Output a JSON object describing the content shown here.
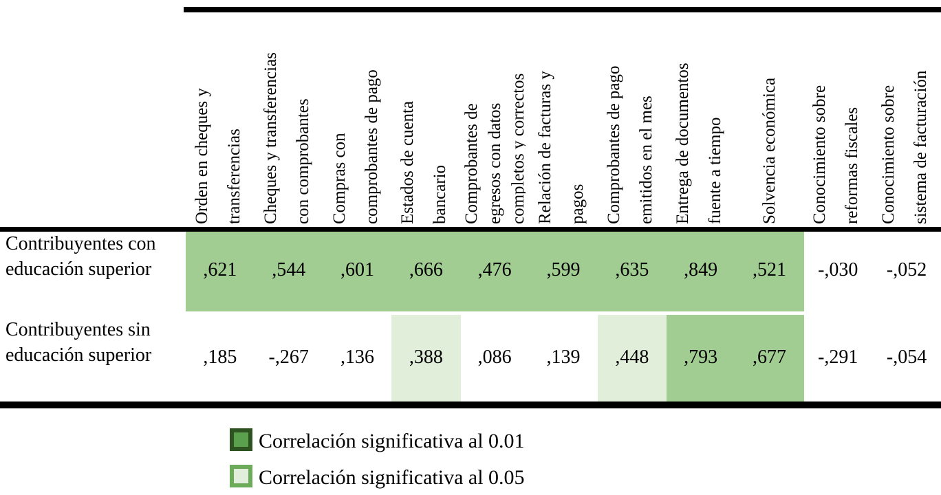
{
  "table": {
    "columns": [
      {
        "lines": [
          "Orden en cheques y",
          "transferencias"
        ]
      },
      {
        "lines": [
          "Cheques y transferencias",
          "con comprobantes"
        ]
      },
      {
        "lines": [
          "Compras con",
          "comprobantes de pago"
        ]
      },
      {
        "lines": [
          "Estados de cuenta",
          "bancario"
        ]
      },
      {
        "lines": [
          "Comprobantes de",
          "egresos con datos",
          "completos y correctos"
        ]
      },
      {
        "lines": [
          "Relación de facturas y",
          "pagos"
        ]
      },
      {
        "lines": [
          "Comprobantes de pago",
          "emitidos en el mes"
        ]
      },
      {
        "lines": [
          "Entrega de documentos",
          "fuente a tiempo"
        ]
      },
      {
        "lines": [
          "Solvencia económica"
        ]
      },
      {
        "lines": [
          "Conocimiento sobre",
          "reformas fiscales"
        ]
      },
      {
        "lines": [
          "Conocimiento sobre",
          "sistema de facturación"
        ]
      }
    ],
    "rows": [
      {
        "label_lines": [
          "Contribuyentes con",
          "educación superior"
        ],
        "values": [
          ",621",
          ",544",
          ",601",
          ",666",
          ",476",
          ",599",
          ",635",
          ",849",
          ",521",
          "-,030",
          "-,052"
        ],
        "significance": [
          "0.01",
          "0.01",
          "0.01",
          "0.01",
          "0.01",
          "0.01",
          "0.01",
          "0.01",
          "0.01",
          null,
          null
        ]
      },
      {
        "label_lines": [
          "Contribuyentes sin",
          "educación superior"
        ],
        "values": [
          ",185",
          "-,267",
          ",136",
          ",388",
          ",086",
          ",139",
          ",448",
          ",793",
          ",677",
          "-,291",
          "-,054"
        ],
        "significance": [
          null,
          null,
          null,
          "0.05",
          null,
          null,
          "0.05",
          "0.01",
          "0.01",
          null,
          null
        ]
      }
    ]
  },
  "legend": {
    "items": [
      {
        "label": "Correlación significativa al 0.01",
        "swatch_fill": "#5ba04c",
        "swatch_border": "#2d5420"
      },
      {
        "label": "Correlación significativa al 0.05",
        "swatch_fill": "#e1eedb",
        "swatch_border": "#6cab59"
      }
    ]
  },
  "colors": {
    "sig_001_cell": "#a1cd92",
    "sig_005_cell": "#e0eeda",
    "rule": "#000000"
  },
  "chart_data": {
    "type": "table",
    "title": "",
    "columns": [
      "Orden en cheques y transferencias",
      "Cheques y transferencias con comprobantes",
      "Compras con comprobantes de pago",
      "Estados de cuenta bancario",
      "Comprobantes de egresos con datos completos y correctos",
      "Relación de facturas y pagos",
      "Comprobantes de pago emitidos en el mes",
      "Entrega de documentos fuente a tiempo",
      "Solvencia económica",
      "Conocimiento sobre reformas fiscales",
      "Conocimiento sobre sistema de facturación"
    ],
    "rows": [
      {
        "name": "Contribuyentes con educación superior",
        "values": [
          0.621,
          0.544,
          0.601,
          0.666,
          0.476,
          0.599,
          0.635,
          0.849,
          0.521,
          -0.03,
          -0.052
        ],
        "significant_at": [
          0.01,
          0.01,
          0.01,
          0.01,
          0.01,
          0.01,
          0.01,
          0.01,
          0.01,
          null,
          null
        ]
      },
      {
        "name": "Contribuyentes sin educación superior",
        "values": [
          0.185,
          -0.267,
          0.136,
          0.388,
          0.086,
          0.139,
          0.448,
          0.793,
          0.677,
          -0.291,
          -0.054
        ],
        "significant_at": [
          null,
          null,
          null,
          0.05,
          null,
          null,
          0.05,
          0.01,
          0.01,
          null,
          null
        ]
      }
    ],
    "legend": [
      "Correlación significativa al 0.01",
      "Correlación significativa al 0.05"
    ],
    "legend_position": "bottom"
  }
}
